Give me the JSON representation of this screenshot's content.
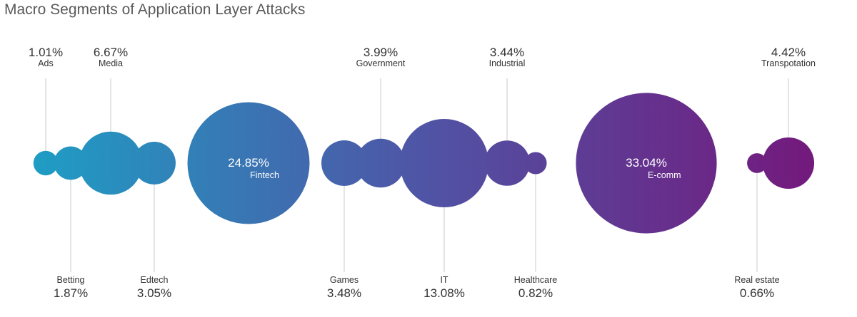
{
  "title": "Macro Segments of Application Layer Attacks",
  "colors": {
    "start": "#1e9ec4",
    "mid": "#4f55a6",
    "end": "#731a7d",
    "leader": "#c8c8c8",
    "text": "#333333"
  },
  "chart_data": {
    "type": "bubble",
    "title": "Macro Segments of Application Layer Attacks",
    "unit": "%",
    "series": [
      {
        "category": "Ads",
        "value": 1.01,
        "label": "1.01%"
      },
      {
        "category": "Betting",
        "value": 1.87,
        "label": "1.87%"
      },
      {
        "category": "Media",
        "value": 6.67,
        "label": "6.67%"
      },
      {
        "category": "Edtech",
        "value": 3.05,
        "label": "3.05%"
      },
      {
        "category": "Fintech",
        "value": 24.85,
        "label": "24.85%"
      },
      {
        "category": "Games",
        "value": 3.48,
        "label": "3.48%"
      },
      {
        "category": "Government",
        "value": 3.99,
        "label": "3.99%"
      },
      {
        "category": "IT",
        "value": 13.08,
        "label": "13.08%"
      },
      {
        "category": "Industrial",
        "value": 3.44,
        "label": "3.44%"
      },
      {
        "category": "Healthcare",
        "value": 0.82,
        "label": "0.82%"
      },
      {
        "category": "E-comm",
        "value": 33.04,
        "label": "33.04%"
      },
      {
        "category": "Real estate",
        "value": 0.66,
        "label": "0.66%"
      },
      {
        "category": "Transpotation",
        "value": 4.42,
        "label": "4.42%"
      }
    ]
  }
}
